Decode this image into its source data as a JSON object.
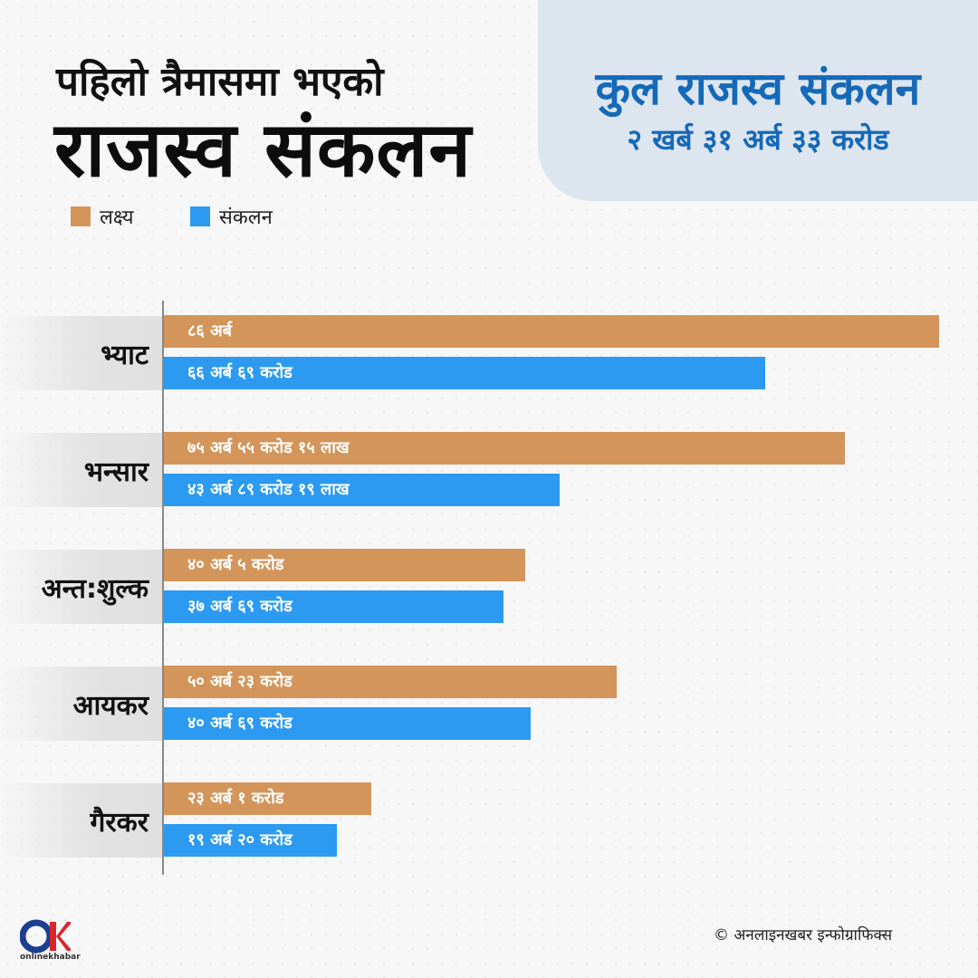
{
  "title": {
    "line1": "पहिलो त्रैमासमा भएको",
    "line2": "राजस्व संकलन"
  },
  "total": {
    "label": "कुल राजस्व संकलन",
    "value": "२ खर्ब ३१ अर्ब ३३ करोड"
  },
  "legend": {
    "target": "लक्ष्य",
    "collection": "संकलन"
  },
  "colors": {
    "target": "#d3955a",
    "collection": "#2b9af0",
    "accent": "#1569b8"
  },
  "chart_data": {
    "type": "bar",
    "orientation": "horizontal",
    "unit": "अर्ब",
    "categories": [
      "भ्याट",
      "भन्सार",
      "अन्त:शुल्क",
      "आयकर",
      "गैरकर"
    ],
    "series": [
      {
        "name": "लक्ष्य",
        "values": [
          86,
          75.5515,
          40.05,
          50.23,
          23.01
        ],
        "labels": [
          "८६ अर्ब",
          "७५ अर्ब ५५ करोड १५ लाख",
          "४० अर्ब ५ करोड",
          "५० अर्ब २३ करोड",
          "२३ अर्ब १ करोड"
        ]
      },
      {
        "name": "संकलन",
        "values": [
          66.69,
          43.8919,
          37.69,
          40.69,
          19.2
        ],
        "labels": [
          "६६ अर्ब ६९ करोड",
          "४३ अर्ब ८९ करोड १९ लाख",
          "३७ अर्ब ६९ करोड",
          "४० अर्ब ६९ करोड",
          "१९ अर्ब २० करोड"
        ]
      }
    ],
    "legend_position": "top-left",
    "grid": false
  },
  "footer": {
    "logo_text": "onlinekhabar",
    "copyright_symbol": "©",
    "credit": "अनलाइनखबर इन्फोग्राफिक्स"
  }
}
